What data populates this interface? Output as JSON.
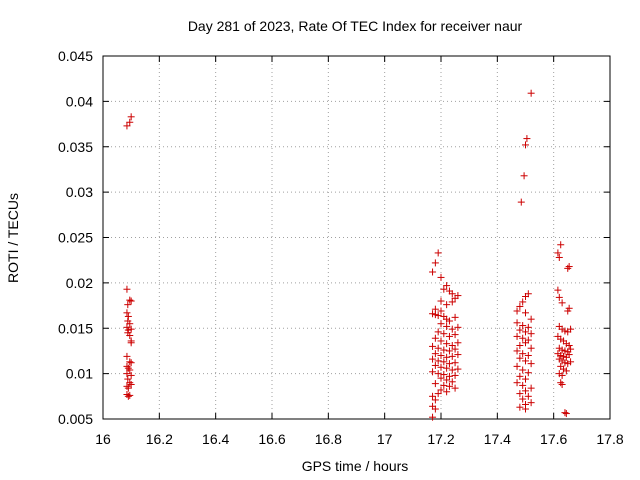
{
  "chart_data": {
    "type": "scatter",
    "title": "Day 281 of 2023, Rate Of TEC Index for receiver naur",
    "xlabel": "GPS time / hours",
    "ylabel": "ROTI / TECUs",
    "xlim": [
      16,
      17.8
    ],
    "ylim": [
      0.005,
      0.045
    ],
    "x_ticks": [
      16,
      16.2,
      16.4,
      16.6,
      16.8,
      17,
      17.2,
      17.4,
      17.6,
      17.8
    ],
    "x_tick_labels": [
      "16",
      "16.2",
      "16.4",
      "16.6",
      "16.8",
      "17",
      "17.2",
      "17.4",
      "17.6",
      "17.8"
    ],
    "y_ticks": [
      0.005,
      0.01,
      0.015,
      0.02,
      0.025,
      0.03,
      0.035,
      0.04,
      0.045
    ],
    "y_tick_labels": [
      "0.005",
      "0.01",
      "0.015",
      "0.02",
      "0.025",
      "0.03",
      "0.035",
      "0.04",
      "0.045"
    ],
    "grid": true,
    "marker": "+",
    "marker_color": "#cc0000",
    "series": [
      {
        "name": "ROTI",
        "points": [
          [
            16.085,
            0.0373
          ],
          [
            16.095,
            0.0377
          ],
          [
            16.1,
            0.0383
          ],
          [
            16.085,
            0.0193
          ],
          [
            16.088,
            0.0176
          ],
          [
            16.095,
            0.0181
          ],
          [
            16.1,
            0.018
          ],
          [
            16.085,
            0.0167
          ],
          [
            16.09,
            0.0163
          ],
          [
            16.088,
            0.0158
          ],
          [
            16.095,
            0.0155
          ],
          [
            16.085,
            0.0151
          ],
          [
            16.09,
            0.0148
          ],
          [
            16.1,
            0.0149
          ],
          [
            16.088,
            0.0145
          ],
          [
            16.095,
            0.0142
          ],
          [
            16.1,
            0.0136
          ],
          [
            16.1,
            0.0134
          ],
          [
            16.085,
            0.0119
          ],
          [
            16.095,
            0.0113
          ],
          [
            16.1,
            0.0112
          ],
          [
            16.085,
            0.0108
          ],
          [
            16.09,
            0.0106
          ],
          [
            16.095,
            0.0104
          ],
          [
            16.085,
            0.01
          ],
          [
            16.1,
            0.0098
          ],
          [
            16.088,
            0.0094
          ],
          [
            16.095,
            0.009
          ],
          [
            16.1,
            0.0088
          ],
          [
            16.085,
            0.0086
          ],
          [
            16.09,
            0.0084
          ],
          [
            16.085,
            0.0077
          ],
          [
            16.095,
            0.0076
          ],
          [
            16.09,
            0.0075
          ],
          [
            17.17,
            0.0212
          ],
          [
            17.18,
            0.0222
          ],
          [
            17.19,
            0.0233
          ],
          [
            17.2,
            0.0206
          ],
          [
            17.21,
            0.0193
          ],
          [
            17.22,
            0.0197
          ],
          [
            17.23,
            0.0191
          ],
          [
            17.24,
            0.0188
          ],
          [
            17.25,
            0.0183
          ],
          [
            17.26,
            0.0186
          ],
          [
            17.2,
            0.018
          ],
          [
            17.22,
            0.0176
          ],
          [
            17.24,
            0.0179
          ],
          [
            17.18,
            0.0171
          ],
          [
            17.2,
            0.0169
          ],
          [
            17.17,
            0.0166
          ],
          [
            17.18,
            0.0165
          ],
          [
            17.19,
            0.0164
          ],
          [
            17.21,
            0.0163
          ],
          [
            17.22,
            0.016
          ],
          [
            17.23,
            0.0158
          ],
          [
            17.25,
            0.0162
          ],
          [
            17.2,
            0.0155
          ],
          [
            17.22,
            0.0152
          ],
          [
            17.24,
            0.0149
          ],
          [
            17.26,
            0.0151
          ],
          [
            17.19,
            0.0146
          ],
          [
            17.21,
            0.0144
          ],
          [
            17.23,
            0.0141
          ],
          [
            17.25,
            0.0143
          ],
          [
            17.18,
            0.0139
          ],
          [
            17.2,
            0.0136
          ],
          [
            17.22,
            0.0133
          ],
          [
            17.24,
            0.0131
          ],
          [
            17.26,
            0.0134
          ],
          [
            17.17,
            0.013
          ],
          [
            17.19,
            0.0128
          ],
          [
            17.21,
            0.0126
          ],
          [
            17.23,
            0.0125
          ],
          [
            17.25,
            0.0127
          ],
          [
            17.18,
            0.0122
          ],
          [
            17.2,
            0.012
          ],
          [
            17.22,
            0.0118
          ],
          [
            17.24,
            0.0119
          ],
          [
            17.26,
            0.0121
          ],
          [
            17.17,
            0.0116
          ],
          [
            17.19,
            0.0114
          ],
          [
            17.21,
            0.0113
          ],
          [
            17.23,
            0.0111
          ],
          [
            17.25,
            0.0112
          ],
          [
            17.18,
            0.0109
          ],
          [
            17.2,
            0.0107
          ],
          [
            17.22,
            0.0106
          ],
          [
            17.24,
            0.0104
          ],
          [
            17.26,
            0.0105
          ],
          [
            17.17,
            0.0102
          ],
          [
            17.19,
            0.01
          ],
          [
            17.21,
            0.0099
          ],
          [
            17.23,
            0.0097
          ],
          [
            17.25,
            0.0098
          ],
          [
            17.2,
            0.0095
          ],
          [
            17.22,
            0.0093
          ],
          [
            17.24,
            0.0091
          ],
          [
            17.18,
            0.0089
          ],
          [
            17.21,
            0.0087
          ],
          [
            17.23,
            0.0086
          ],
          [
            17.25,
            0.0084
          ],
          [
            17.2,
            0.0082
          ],
          [
            17.22,
            0.008
          ],
          [
            17.19,
            0.0078
          ],
          [
            17.17,
            0.0075
          ],
          [
            17.18,
            0.0071
          ],
          [
            17.17,
            0.0064
          ],
          [
            17.18,
            0.0061
          ],
          [
            17.17,
            0.0052
          ],
          [
            17.52,
            0.0409
          ],
          [
            17.505,
            0.0359
          ],
          [
            17.5,
            0.0352
          ],
          [
            17.495,
            0.0318
          ],
          [
            17.485,
            0.0289
          ],
          [
            17.5,
            0.0185
          ],
          [
            17.51,
            0.0188
          ],
          [
            17.49,
            0.0179
          ],
          [
            17.48,
            0.0174
          ],
          [
            17.47,
            0.0169
          ],
          [
            17.5,
            0.0167
          ],
          [
            17.52,
            0.016
          ],
          [
            17.47,
            0.0156
          ],
          [
            17.49,
            0.0153
          ],
          [
            17.51,
            0.0151
          ],
          [
            17.48,
            0.0148
          ],
          [
            17.5,
            0.0146
          ],
          [
            17.52,
            0.0144
          ],
          [
            17.47,
            0.0141
          ],
          [
            17.49,
            0.0139
          ],
          [
            17.51,
            0.0137
          ],
          [
            17.5,
            0.0134
          ],
          [
            17.48,
            0.0131
          ],
          [
            17.52,
            0.0128
          ],
          [
            17.47,
            0.0125
          ],
          [
            17.49,
            0.0122
          ],
          [
            17.51,
            0.012
          ],
          [
            17.48,
            0.0117
          ],
          [
            17.5,
            0.0114
          ],
          [
            17.52,
            0.0111
          ],
          [
            17.47,
            0.0108
          ],
          [
            17.49,
            0.0104
          ],
          [
            17.51,
            0.0101
          ],
          [
            17.48,
            0.0097
          ],
          [
            17.5,
            0.0094
          ],
          [
            17.47,
            0.009
          ],
          [
            17.49,
            0.0087
          ],
          [
            17.52,
            0.0084
          ],
          [
            17.5,
            0.0081
          ],
          [
            17.48,
            0.0078
          ],
          [
            17.51,
            0.0075
          ],
          [
            17.49,
            0.0072
          ],
          [
            17.52,
            0.0068
          ],
          [
            17.5,
            0.0066
          ],
          [
            17.48,
            0.0063
          ],
          [
            17.5,
            0.0061
          ],
          [
            17.625,
            0.0242
          ],
          [
            17.615,
            0.0233
          ],
          [
            17.62,
            0.0228
          ],
          [
            17.655,
            0.0218
          ],
          [
            17.65,
            0.0216
          ],
          [
            17.615,
            0.0192
          ],
          [
            17.62,
            0.0184
          ],
          [
            17.63,
            0.0178
          ],
          [
            17.655,
            0.0172
          ],
          [
            17.65,
            0.0169
          ],
          [
            17.62,
            0.0152
          ],
          [
            17.63,
            0.0149
          ],
          [
            17.64,
            0.0147
          ],
          [
            17.65,
            0.0146
          ],
          [
            17.66,
            0.0149
          ],
          [
            17.615,
            0.0141
          ],
          [
            17.625,
            0.0138
          ],
          [
            17.635,
            0.0136
          ],
          [
            17.645,
            0.0133
          ],
          [
            17.655,
            0.0131
          ],
          [
            17.62,
            0.0128
          ],
          [
            17.63,
            0.0126
          ],
          [
            17.64,
            0.0125
          ],
          [
            17.65,
            0.0124
          ],
          [
            17.66,
            0.0127
          ],
          [
            17.615,
            0.0122
          ],
          [
            17.625,
            0.012
          ],
          [
            17.635,
            0.0119
          ],
          [
            17.645,
            0.0118
          ],
          [
            17.655,
            0.0121
          ],
          [
            17.62,
            0.0116
          ],
          [
            17.63,
            0.0114
          ],
          [
            17.64,
            0.0112
          ],
          [
            17.65,
            0.0111
          ],
          [
            17.66,
            0.0113
          ],
          [
            17.625,
            0.0108
          ],
          [
            17.635,
            0.0105
          ],
          [
            17.645,
            0.0103
          ],
          [
            17.62,
            0.01
          ],
          [
            17.63,
            0.0098
          ],
          [
            17.625,
            0.009
          ],
          [
            17.63,
            0.0088
          ],
          [
            17.64,
            0.0057
          ],
          [
            17.645,
            0.0056
          ]
        ]
      }
    ]
  }
}
